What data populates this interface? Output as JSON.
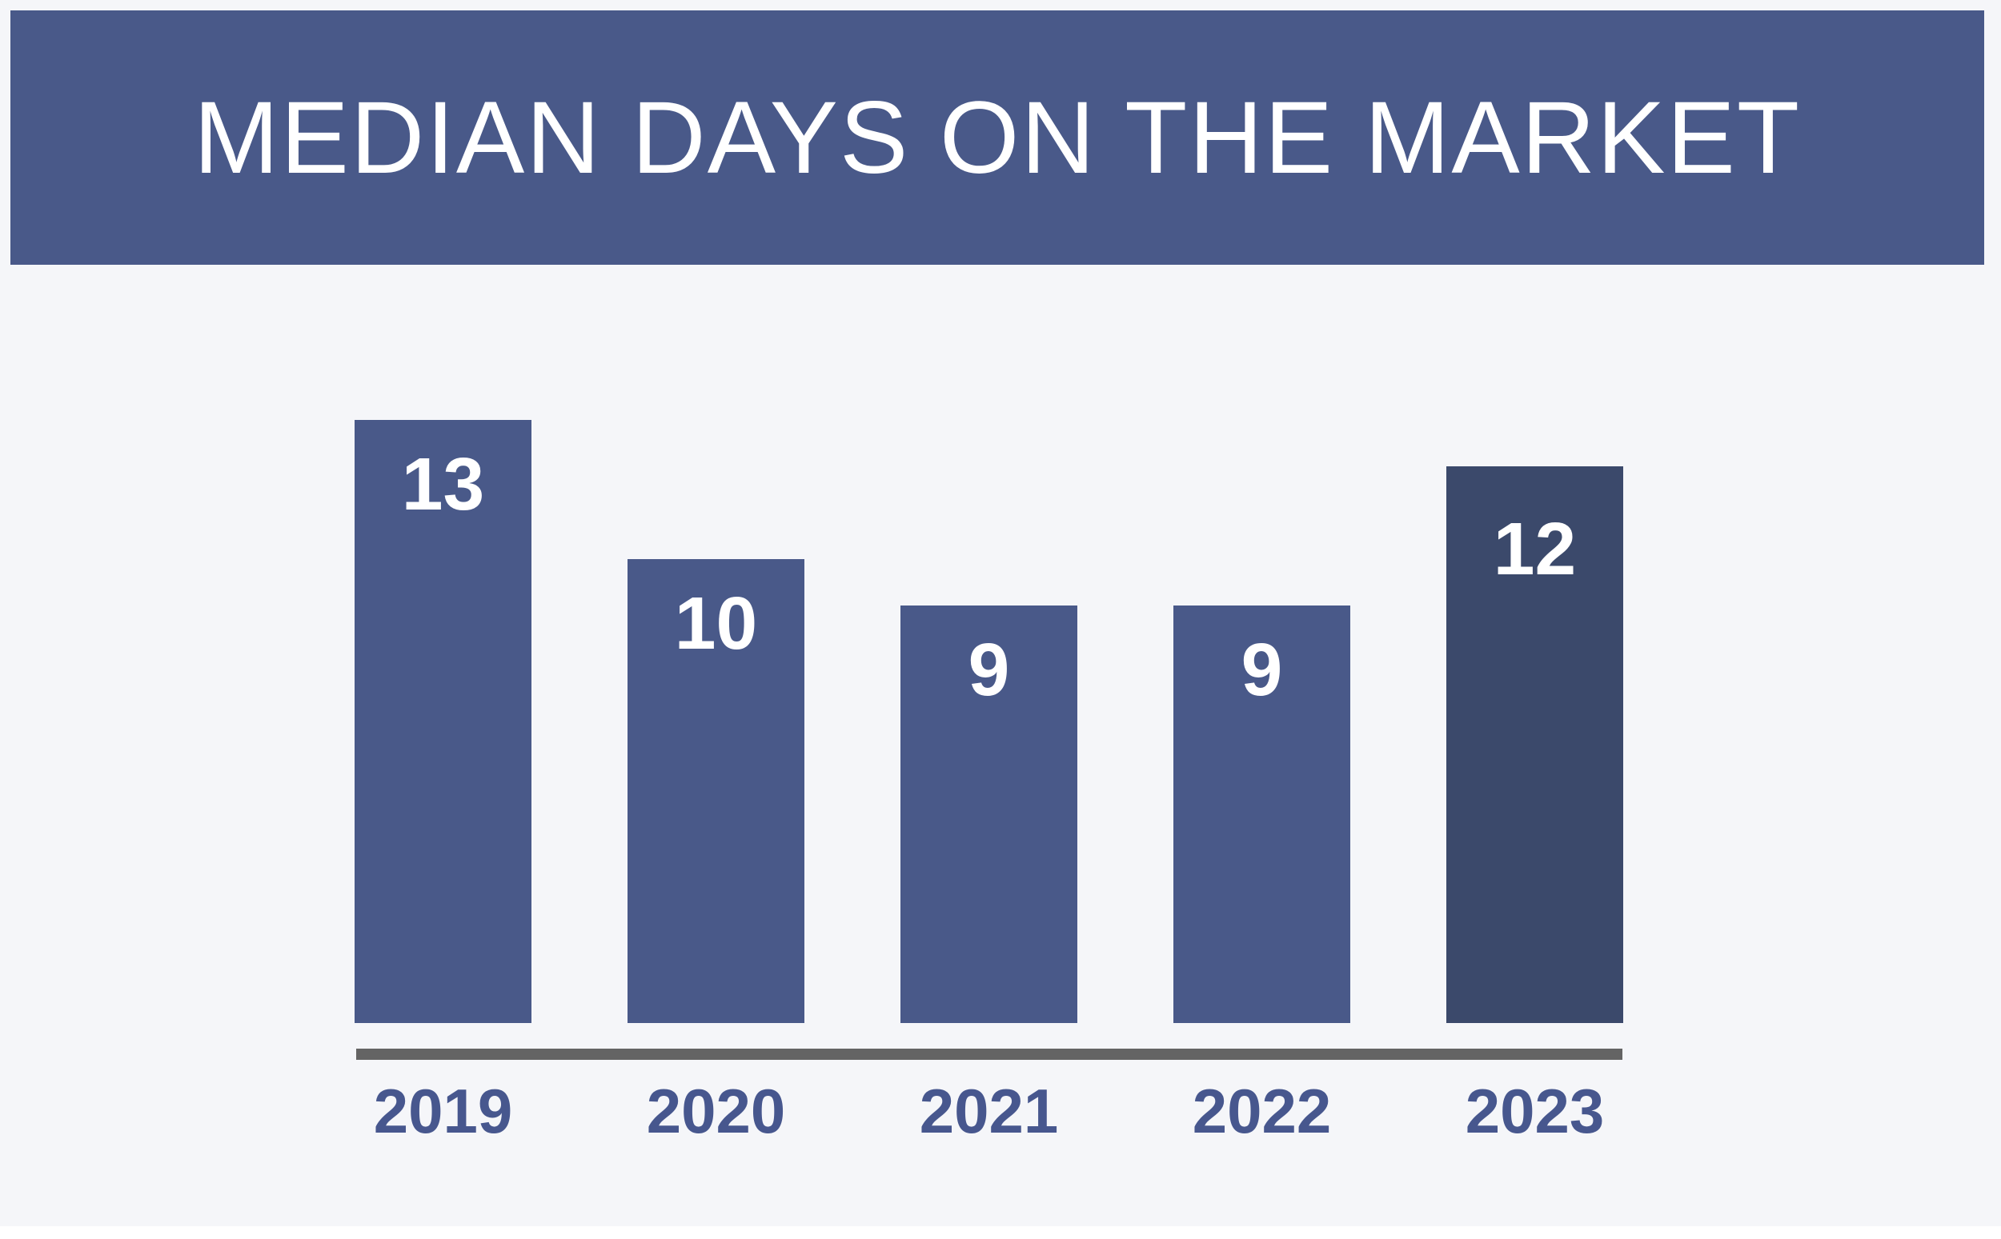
{
  "banner": {
    "title": "MEDIAN DAYS ON THE MARKET"
  },
  "chart_data": {
    "type": "bar",
    "title": "MEDIAN DAYS ON THE MARKET",
    "categories": [
      "2019",
      "2020",
      "2021",
      "2022",
      "2023"
    ],
    "values": [
      13,
      10,
      9,
      9,
      12
    ],
    "xlabel": "",
    "ylabel": "",
    "ylim": [
      0,
      13
    ],
    "grid": false,
    "legend_position": "none",
    "bar_value_labels": [
      "13",
      "10",
      "9",
      "9",
      "12"
    ],
    "bar_value_label_position": "inside-top",
    "highlight_index": 4,
    "colors": {
      "bar_default": "#495989",
      "bar_highlight": "#3b496b",
      "value_label_text": "#ffffff",
      "category_label_text": "#47578e",
      "axis_line": "#646464",
      "banner_background": "#495989",
      "banner_text": "#ffffff",
      "page_background": "#f5f6f9"
    }
  }
}
